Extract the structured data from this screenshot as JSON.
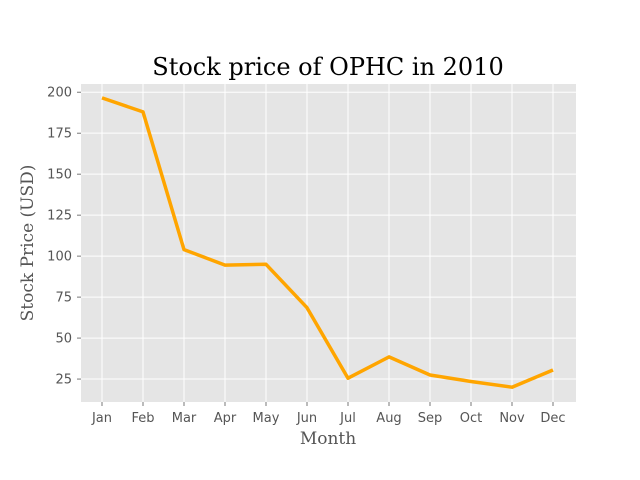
{
  "chart_data": {
    "type": "line",
    "title": "Stock price of OPHC in 2010",
    "xlabel": "Month",
    "ylabel": "Stock Price (USD)",
    "categories": [
      "Jan",
      "Feb",
      "Mar",
      "Apr",
      "May",
      "Jun",
      "Jul",
      "Aug",
      "Sep",
      "Oct",
      "Nov",
      "Dec"
    ],
    "series": [
      {
        "values": [
          196.5,
          188.0,
          104.0,
          94.5,
          95.0,
          68.5,
          25.5,
          38.5,
          27.5,
          23.5,
          20.0,
          30.5
        ]
      }
    ],
    "ylim": [
      11,
      205
    ],
    "yticks": [
      25,
      50,
      75,
      100,
      125,
      150,
      175,
      200
    ],
    "grid": true,
    "colors": {
      "line": "#ffa500",
      "plot_background": "#e5e5e5",
      "grid": "#ffffff"
    }
  }
}
